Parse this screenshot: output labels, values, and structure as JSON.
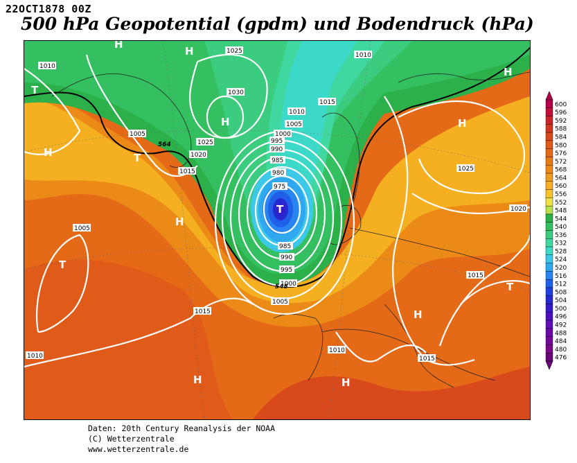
{
  "header": {
    "date": "22OCT1878 00Z",
    "title": "500 hPa Geopotential (gpdm) und Bodendruck (hPa)"
  },
  "legend": {
    "levels": [
      "600",
      "596",
      "592",
      "588",
      "584",
      "580",
      "576",
      "572",
      "568",
      "564",
      "560",
      "556",
      "552",
      "548",
      "544",
      "540",
      "536",
      "532",
      "528",
      "524",
      "520",
      "516",
      "512",
      "508",
      "504",
      "500",
      "496",
      "492",
      "488",
      "484",
      "480",
      "476"
    ],
    "colors": [
      "#b4004a",
      "#c0103a",
      "#c8242a",
      "#d03820",
      "#d84a1c",
      "#e05a1a",
      "#e46a18",
      "#e87a16",
      "#ec8a18",
      "#f09c1c",
      "#f4b020",
      "#f8c428",
      "#f0e048",
      "#b8e04a",
      "#2cb04a",
      "#34c060",
      "#3ccc80",
      "#40d8a0",
      "#3cd8c8",
      "#3cc8e8",
      "#30a8f0",
      "#2884f0",
      "#2060e8",
      "#2040e0",
      "#2828d0",
      "#3818c8",
      "#4c10c0",
      "#6010b8",
      "#6c08a8",
      "#720898",
      "#780888",
      "#6a0478"
    ]
  },
  "map": {
    "pressure_labels": [
      "1010",
      "1010",
      "1005",
      "1005",
      "1015",
      "1025",
      "1030",
      "1025",
      "1020",
      "1015",
      "1010",
      "1005",
      "1000",
      "995",
      "990",
      "985",
      "980",
      "975",
      "985",
      "990",
      "995",
      "1000",
      "1005",
      "1015",
      "1010",
      "1015",
      "1020",
      "1025",
      "1015",
      "1010"
    ],
    "centers": [
      "H",
      "T",
      "H",
      "T",
      "H",
      "H",
      "T",
      "H",
      "H",
      "T",
      "H",
      "T",
      "H",
      "H",
      "H",
      "H"
    ],
    "contour_labels": [
      "564",
      "548"
    ]
  },
  "credits": {
    "line1": "Daten: 20th Century Reanalysis der NOAA",
    "line2": "(C) Wetterzentrale",
    "line3": "www.wetterzentrale.de"
  }
}
